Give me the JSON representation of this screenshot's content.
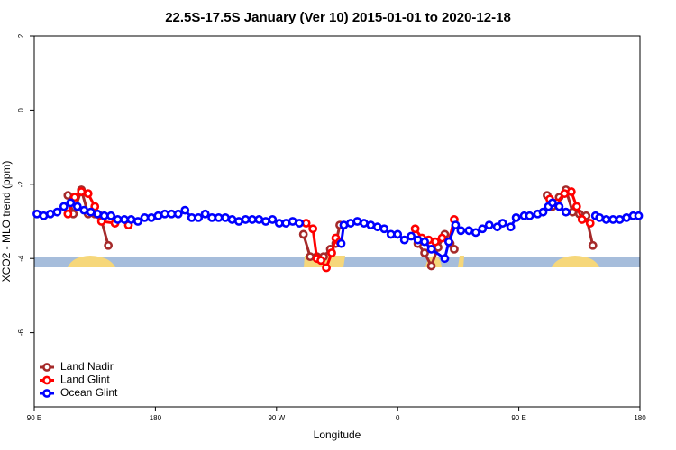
{
  "chart_data": {
    "type": "line",
    "title": "22.5S-17.5S January (Ver 10)   2015-01-01 to 2020-12-18",
    "xlabel": "Longitude",
    "ylabel": "XCO2 - MLO trend (ppm)",
    "xlim": [
      90,
      540
    ],
    "xticks": [
      {
        "value": 90,
        "label": "90 E"
      },
      180,
      {
        "value": 270,
        "label": "90 W"
      },
      {
        "value": 360,
        "label": "0"
      },
      {
        "value": 450,
        "label": "90 E"
      },
      {
        "value": 540,
        "label": "180"
      }
    ],
    "ylim": [
      -8,
      2
    ],
    "yticks": [
      2,
      0,
      -2,
      -4,
      -6
    ],
    "legend": "bottom-left",
    "series": [
      {
        "name": "Land Nadir",
        "color": "#a52a2a",
        "x": [
          115,
          119,
          125,
          130,
          135,
          139,
          145,
          null,
          290,
          295,
          300,
          305,
          310,
          314,
          317,
          null,
          375,
          380,
          385,
          390,
          395,
          399,
          402,
          null,
          471,
          475,
          480,
          485,
          490,
          495,
          500,
          505
        ],
        "values": [
          -2.3,
          -2.8,
          -2.15,
          -2.8,
          -2.8,
          -2.85,
          -3.65,
          null,
          -3.35,
          -3.95,
          -3.95,
          -3.95,
          -3.75,
          -3.6,
          -3.1,
          null,
          -3.6,
          -3.85,
          -4.2,
          -3.7,
          -3.35,
          -3.6,
          -3.75,
          null,
          -2.3,
          -2.6,
          -2.35,
          -2.15,
          -2.75,
          -2.8,
          -2.85,
          -3.65
        ]
      },
      {
        "name": "Land Glint",
        "color": "#ff0000",
        "x": [
          115,
          120,
          125,
          130,
          135,
          140,
          150,
          null,
          160,
          null,
          292,
          297,
          300,
          303,
          307,
          311,
          314,
          317,
          null,
          373,
          378,
          383,
          388,
          393,
          398,
          402,
          null,
          473,
          478,
          484,
          489,
          493,
          497,
          503
        ],
        "values": [
          -2.8,
          -2.35,
          -2.2,
          -2.25,
          -2.6,
          -3.0,
          -3.05,
          null,
          -3.1,
          null,
          -3.05,
          -3.2,
          -4.0,
          -4.05,
          -4.25,
          -3.85,
          -3.45,
          -3.55,
          null,
          -3.2,
          -3.45,
          -3.5,
          -3.55,
          -3.45,
          -3.55,
          -2.95,
          null,
          -2.4,
          -2.5,
          -2.25,
          -2.2,
          -2.6,
          -2.95,
          -3.05
        ]
      },
      {
        "name": "Ocean Glint",
        "color": "#0000ff",
        "x": [
          92,
          97,
          102,
          107,
          112,
          117,
          122,
          127,
          132,
          137,
          142,
          147,
          152,
          157,
          162,
          167,
          172,
          177,
          182,
          187,
          192,
          197,
          202,
          207,
          212,
          217,
          222,
          227,
          232,
          237,
          242,
          247,
          252,
          257,
          262,
          267,
          272,
          277,
          282,
          287,
          null,
          318,
          320,
          325,
          330,
          335,
          340,
          345,
          350,
          355,
          360,
          365,
          370,
          375,
          380,
          385,
          395,
          398,
          403,
          407,
          413,
          418,
          423,
          428,
          434,
          438,
          444,
          448,
          454,
          458,
          464,
          468,
          472,
          475,
          480,
          485,
          null,
          507,
          510,
          515,
          520,
          525,
          530,
          535,
          539
        ],
        "values": [
          -2.8,
          -2.85,
          -2.8,
          -2.75,
          -2.6,
          -2.5,
          -2.6,
          -2.7,
          -2.75,
          -2.8,
          -2.85,
          -2.85,
          -2.95,
          -2.95,
          -2.95,
          -3.0,
          -2.9,
          -2.9,
          -2.85,
          -2.8,
          -2.8,
          -2.8,
          -2.7,
          -2.9,
          -2.9,
          -2.8,
          -2.9,
          -2.9,
          -2.9,
          -2.95,
          -3.0,
          -2.95,
          -2.95,
          -2.95,
          -3.0,
          -2.95,
          -3.05,
          -3.05,
          -3.0,
          -3.05,
          null,
          -3.6,
          -3.1,
          -3.05,
          -3.0,
          -3.05,
          -3.1,
          -3.15,
          -3.2,
          -3.35,
          -3.35,
          -3.5,
          -3.4,
          -3.5,
          -3.55,
          -3.75,
          -4.0,
          -3.55,
          -3.1,
          -3.25,
          -3.25,
          -3.3,
          -3.2,
          -3.1,
          -3.15,
          -3.05,
          -3.15,
          -2.9,
          -2.85,
          -2.85,
          -2.8,
          -2.75,
          -2.6,
          -2.5,
          -2.6,
          -2.75,
          null,
          -2.85,
          -2.9,
          -2.95,
          -2.95,
          -2.95,
          -2.9,
          -2.85,
          -2.85
        ]
      }
    ]
  }
}
